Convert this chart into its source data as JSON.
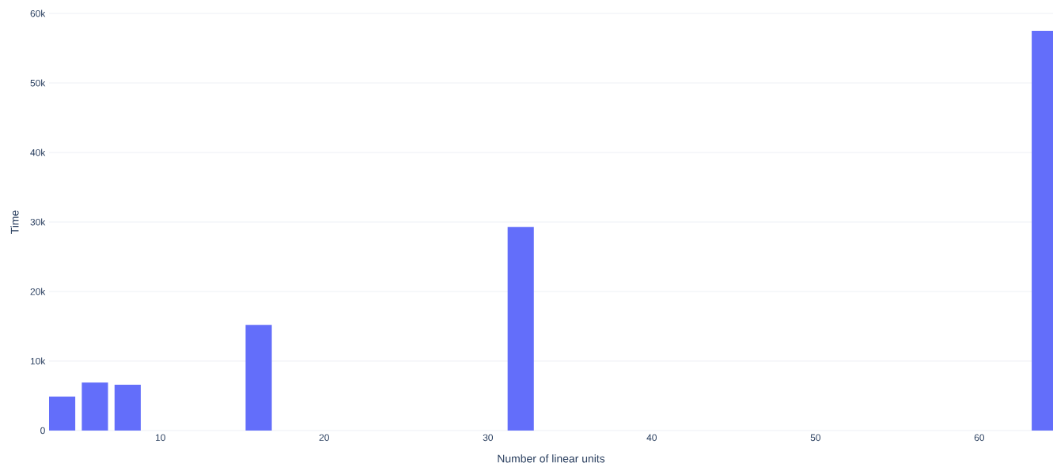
{
  "chart_data": {
    "type": "bar",
    "xlabel": "Number of linear units",
    "ylabel": "Time",
    "x": [
      4,
      6,
      8,
      16,
      32,
      64
    ],
    "values": [
      4900,
      6900,
      6600,
      15200,
      29300,
      57500
    ],
    "color": "#636efa",
    "xlim": [
      3.2,
      64.5
    ],
    "xticks": [
      10,
      20,
      30,
      40,
      50,
      60
    ],
    "ylim": [
      0,
      60000
    ],
    "yticks": [
      0,
      {
        "value": 10000,
        "label": "10k"
      },
      {
        "value": 20000,
        "label": "20k"
      },
      {
        "value": 30000,
        "label": "30k"
      },
      {
        "value": 40000,
        "label": "40k"
      },
      {
        "value": 50000,
        "label": "50k"
      },
      {
        "value": 60000,
        "label": "60k"
      }
    ],
    "grid": "y"
  }
}
